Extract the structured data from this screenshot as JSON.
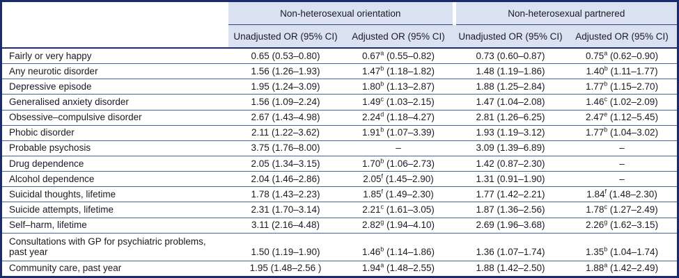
{
  "table": {
    "groups": [
      "Non-heterosexual orientation",
      "Non-heterosexual partnered"
    ],
    "columns": [
      "Unadjusted OR (95% CI)",
      "Adjusted OR (95% CI)",
      "Unadjusted OR (95% CI)",
      "Adjusted OR (95% CI)"
    ],
    "rows": [
      {
        "label": "Fairly or very happy",
        "cells": [
          "0.65 (0.53–0.80)",
          "0.67^a (0.55–0.82)",
          "0.73 (0.60–0.87)",
          "0.75^a (0.62–0.90)"
        ]
      },
      {
        "label": "Any neurotic disorder",
        "cells": [
          "1.56 (1.26–1.93)",
          "1.47^b (1.18–1.82)",
          "1.48 (1.19–1.86)",
          "1.40^b (1.11–1.77)"
        ]
      },
      {
        "label": "Depressive episode",
        "cells": [
          "1.95 (1.24–3.09)",
          "1.80^b (1.13–2.87)",
          "1.88 (1.25–2.84)",
          "1.77^b (1.15–2.70)"
        ]
      },
      {
        "label": "Generalised anxiety disorder",
        "cells": [
          "1.56 (1.09–2.24)",
          "1.49^c (1.03–2.15)",
          "1.47 (1.04–2.08)",
          "1.46^c (1.02–2.09)"
        ]
      },
      {
        "label": "Obsessive–compulsive disorder",
        "cells": [
          "2.67 (1.43–4.98)",
          "2.24^d (1.18–4.27)",
          "2.81 (1.26–6.25)",
          "2.47^e (1.12–5.45)"
        ]
      },
      {
        "label": "Phobic disorder",
        "cells": [
          "2.11 (1.22–3.62)",
          "1.91^b (1.07–3.39)",
          "1.93 (1.19–3.12)",
          "1.77^b (1.04–3.02)"
        ]
      },
      {
        "label": "Probable psychosis",
        "cells": [
          "3.75 (1.76–8.00)",
          "–",
          "3.09 (1.39–6.89)",
          "–"
        ]
      },
      {
        "label": "Drug dependence",
        "cells": [
          "2.05 (1.34–3.15)",
          "1.70^b (1.06–2.73)",
          "1.42 (0.87–2.30)",
          "–"
        ]
      },
      {
        "label": "Alcohol dependence",
        "cells": [
          "2.04 (1.46–2.86)",
          "2.05^f (1.45–2.90)",
          "1.31 (0.91–1.90)",
          "–"
        ]
      },
      {
        "label": "Suicidal thoughts, lifetime",
        "cells": [
          "1.78 (1.43–2.23)",
          "1.85^f (1.49–2.30)",
          "1.77 (1.42–2.21)",
          "1.84^f (1.48–2.30)"
        ]
      },
      {
        "label": "Suicide attempts, lifetime",
        "cells": [
          "2.31 (1.70–3.14)",
          "2.21^c (1.61–3.05)",
          "1.87 (1.36–2.56)",
          "1.78^c (1.27–2.49)"
        ]
      },
      {
        "label": "Self–harm, lifetime",
        "cells": [
          "3.11 (2.16–4.48)",
          "2.82^g (1.94–4.10)",
          "2.69 (1.96–3.68)",
          "2.26^g (1.62–3.15)"
        ]
      },
      {
        "label": "Consultations with GP for psychiatric problems,\npast year",
        "cells": [
          "1.50 (1.19–1.90)",
          "1.46^b (1.14–1.86)",
          "1.36 (1.07–1.74)",
          "1.35^b (1.04–1.74)"
        ]
      },
      {
        "label": "Community care, past year",
        "cells": [
          "1.95 (1.48–2.56 )",
          "1.94^a (1.48–2.55)",
          "1.88 (1.42–2.50)",
          "1.88^a (1.42–2.49)"
        ]
      }
    ],
    "colors": {
      "frame": "#1b2a6b",
      "header_bg": "#dae2f1",
      "row_line": "#44629e",
      "text": "#1a1a22"
    }
  }
}
